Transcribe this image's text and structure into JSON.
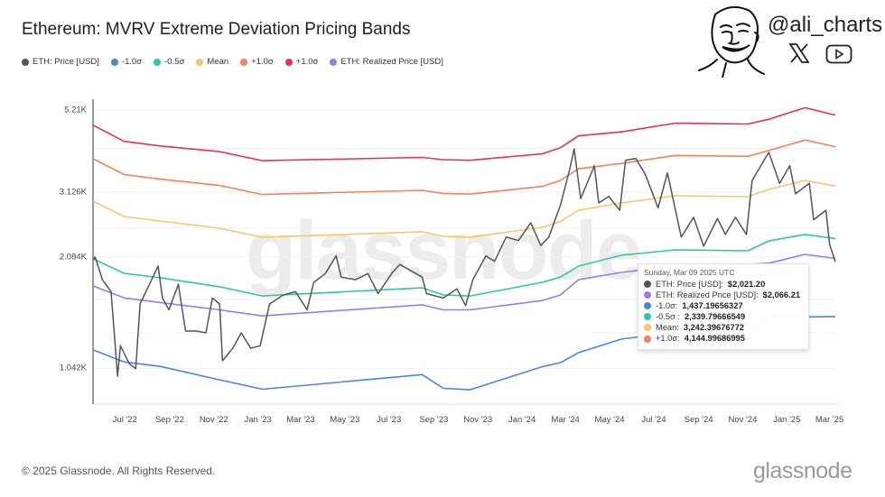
{
  "header": {
    "title": "Ethereum: MVRV Extreme Deviation Pricing Bands",
    "handle": "@ali_charts",
    "icons": [
      "avatar-cartoon",
      "x-logo-icon",
      "youtube-icon"
    ]
  },
  "watermark": "glassnode",
  "footer": {
    "copyright": "© 2025 Glassnode. All Rights Reserved.",
    "logo": "glassnode"
  },
  "tooltip": {
    "date": "Sunday, Mar 09 2025 UTC",
    "rows": [
      {
        "label": "ETH: Price [USD]: ",
        "value": "$2,021.20",
        "color": "#555555"
      },
      {
        "label": "ETH: Realized Price [USD]: ",
        "value": "$2,066.21",
        "color": "#9b7be8"
      },
      {
        "label": "-1.0σ: ",
        "value": "1,437.19656327",
        "color": "#4a86e0"
      },
      {
        "label": "-0.5σ : ",
        "value": "2,339.79666549",
        "color": "#2fc7a2"
      },
      {
        "label": "Mean: ",
        "value": "3,242.39676772",
        "color": "#f5c86a"
      },
      {
        "label": "+1.0σ: ",
        "value": "4,144.99686995",
        "color": "#f0845c"
      }
    ]
  },
  "chart_data": {
    "type": "line",
    "title": "Ethereum: MVRV Extreme Deviation Pricing Bands",
    "xlabel": "",
    "ylabel": "",
    "yscale": "log",
    "ylim": [
      860,
      5600
    ],
    "xlim": [
      "2022-05-18",
      "2025-03-09"
    ],
    "grid": true,
    "legend_position": "top-left",
    "yticks": [
      {
        "value": 5210,
        "label": "5.21K"
      },
      {
        "value": 3126,
        "label": "3.126K"
      },
      {
        "value": 2084,
        "label": "2.084K"
      },
      {
        "value": 1042,
        "label": "1.042K"
      }
    ],
    "xticks": [
      {
        "date": "2022-07-01",
        "label": "Jul '22"
      },
      {
        "date": "2022-09-01",
        "label": "Sep '22"
      },
      {
        "date": "2022-11-01",
        "label": "Nov '22"
      },
      {
        "date": "2023-01-01",
        "label": "Jan '23"
      },
      {
        "date": "2023-03-01",
        "label": "Mar '23"
      },
      {
        "date": "2023-05-01",
        "label": "May '23"
      },
      {
        "date": "2023-07-01",
        "label": "Jul '23"
      },
      {
        "date": "2023-09-01",
        "label": "Sep '23"
      },
      {
        "date": "2023-11-01",
        "label": "Nov '23"
      },
      {
        "date": "2024-01-01",
        "label": "Jan '24"
      },
      {
        "date": "2024-03-01",
        "label": "Mar '24"
      },
      {
        "date": "2024-05-01",
        "label": "May '24"
      },
      {
        "date": "2024-07-01",
        "label": "Jul '24"
      },
      {
        "date": "2024-09-01",
        "label": "Sep '24"
      },
      {
        "date": "2024-11-01",
        "label": "Nov '24"
      },
      {
        "date": "2025-01-01",
        "label": "Jan '25"
      },
      {
        "date": "2025-03-01",
        "label": "Mar '25"
      }
    ],
    "band_dates": [
      "2022-05-18",
      "2022-06-30",
      "2022-08-19",
      "2022-11-09",
      "2023-01-07",
      "2023-08-16",
      "2023-09-14",
      "2023-10-21",
      "2024-01-29",
      "2024-02-23",
      "2024-03-19",
      "2024-05-17",
      "2024-07-31",
      "2024-11-08",
      "2024-12-07",
      "2025-01-26",
      "2025-03-09"
    ],
    "series": [
      {
        "name": "ETH: Price [USD]",
        "color": "#555555",
        "dates": [
          "2022-05-18",
          "2022-05-21",
          "2022-05-31",
          "2022-06-12",
          "2022-06-21",
          "2022-06-25",
          "2022-07-07",
          "2022-07-16",
          "2022-07-22",
          "2022-08-01",
          "2022-08-16",
          "2022-08-22",
          "2022-08-31",
          "2022-09-13",
          "2022-09-23",
          "2022-10-08",
          "2022-10-21",
          "2022-10-30",
          "2022-11-09",
          "2022-11-13",
          "2022-11-27",
          "2022-12-09",
          "2022-12-22",
          "2023-01-04",
          "2023-01-17",
          "2023-02-05",
          "2023-02-22",
          "2023-03-10",
          "2023-03-19",
          "2023-04-04",
          "2023-04-19",
          "2023-04-26",
          "2023-05-16",
          "2023-06-02",
          "2023-06-16",
          "2023-07-05",
          "2023-07-16",
          "2023-08-16",
          "2023-08-22",
          "2023-09-14",
          "2023-10-03",
          "2023-10-15",
          "2023-10-25",
          "2023-11-12",
          "2023-11-24",
          "2023-12-10",
          "2023-12-27",
          "2024-01-13",
          "2024-01-27",
          "2024-02-07",
          "2024-02-23",
          "2024-03-07",
          "2024-03-13",
          "2024-03-22",
          "2024-04-10",
          "2024-04-16",
          "2024-04-30",
          "2024-05-15",
          "2024-05-23",
          "2024-06-06",
          "2024-06-19",
          "2024-07-07",
          "2024-07-20",
          "2024-08-08",
          "2024-08-25",
          "2024-09-08",
          "2024-09-27",
          "2024-10-08",
          "2024-10-22",
          "2024-11-06",
          "2024-11-14",
          "2024-12-07",
          "2024-12-22",
          "2025-01-05",
          "2025-01-13",
          "2025-02-01",
          "2025-02-07",
          "2025-02-24",
          "2025-03-01",
          "2025-03-09"
        ],
        "values": [
          2050,
          2084,
          1810,
          1680,
          993,
          1200,
          1073,
          1040,
          1556,
          1710,
          1970,
          1615,
          1500,
          1760,
          1315,
          1315,
          1300,
          1615,
          1556,
          1092,
          1180,
          1300,
          1180,
          1200,
          1556,
          1646,
          1680,
          1500,
          1780,
          1880,
          2100,
          1840,
          1810,
          1880,
          1660,
          1885,
          1990,
          1840,
          1660,
          1615,
          1710,
          1540,
          1810,
          2100,
          2030,
          2360,
          2310,
          2580,
          2240,
          2360,
          2880,
          3614,
          4090,
          3000,
          3680,
          2920,
          3040,
          2790,
          3810,
          3850,
          3500,
          2830,
          3520,
          2360,
          2670,
          2230,
          2650,
          2400,
          2670,
          2400,
          3360,
          4000,
          3300,
          3680,
          3090,
          3300,
          2630,
          2790,
          2260,
          2021.2
        ]
      },
      {
        "name": "-1.0σ",
        "color": "#4a86e0",
        "values": [
          1169,
          1084,
          1055,
          970,
          915,
          1002,
          920,
          912,
          1053,
          1080,
          1149,
          1250,
          1307,
          1300,
          1434,
          1436,
          1437.19656327
        ]
      },
      {
        "name": "-0.5σ",
        "color": "#2fc7a2",
        "values": [
          2061,
          1884,
          1832,
          1732,
          1636,
          1721,
          1646,
          1636,
          1781,
          1840,
          1970,
          2107,
          2180,
          2168,
          2305,
          2398,
          2339.79666549
        ]
      },
      {
        "name": "Mean",
        "color": "#f5c86a",
        "values": [
          2953,
          2684,
          2609,
          2494,
          2357,
          2440,
          2372,
          2360,
          2509,
          2600,
          2791,
          2920,
          3053,
          3036,
          3176,
          3360,
          3242.39676772
        ]
      },
      {
        "name": "+1.0σ",
        "color": "#f0845c",
        "values": [
          3845,
          3484,
          3386,
          3256,
          3078,
          3159,
          3098,
          3084,
          3237,
          3360,
          3612,
          3733,
          3926,
          3904,
          4047,
          4322,
          4144.99686995
        ]
      },
      {
        "name": "+1.0σ",
        "color": "#e0325a",
        "values": [
          4737,
          4284,
          4163,
          4018,
          3799,
          3878,
          3824,
          3808,
          3965,
          4120,
          4433,
          4546,
          4799,
          4772,
          4918,
          5284,
          5047
        ]
      },
      {
        "name": "ETH: Realized Price [USD]",
        "color": "#9b7be8",
        "values": [
          1741,
          1616,
          1570,
          1500,
          1445,
          1548,
          1500,
          1500,
          1590,
          1646,
          1810,
          1894,
          1970,
          1990,
          2006,
          2120,
          2066.21
        ]
      }
    ]
  }
}
